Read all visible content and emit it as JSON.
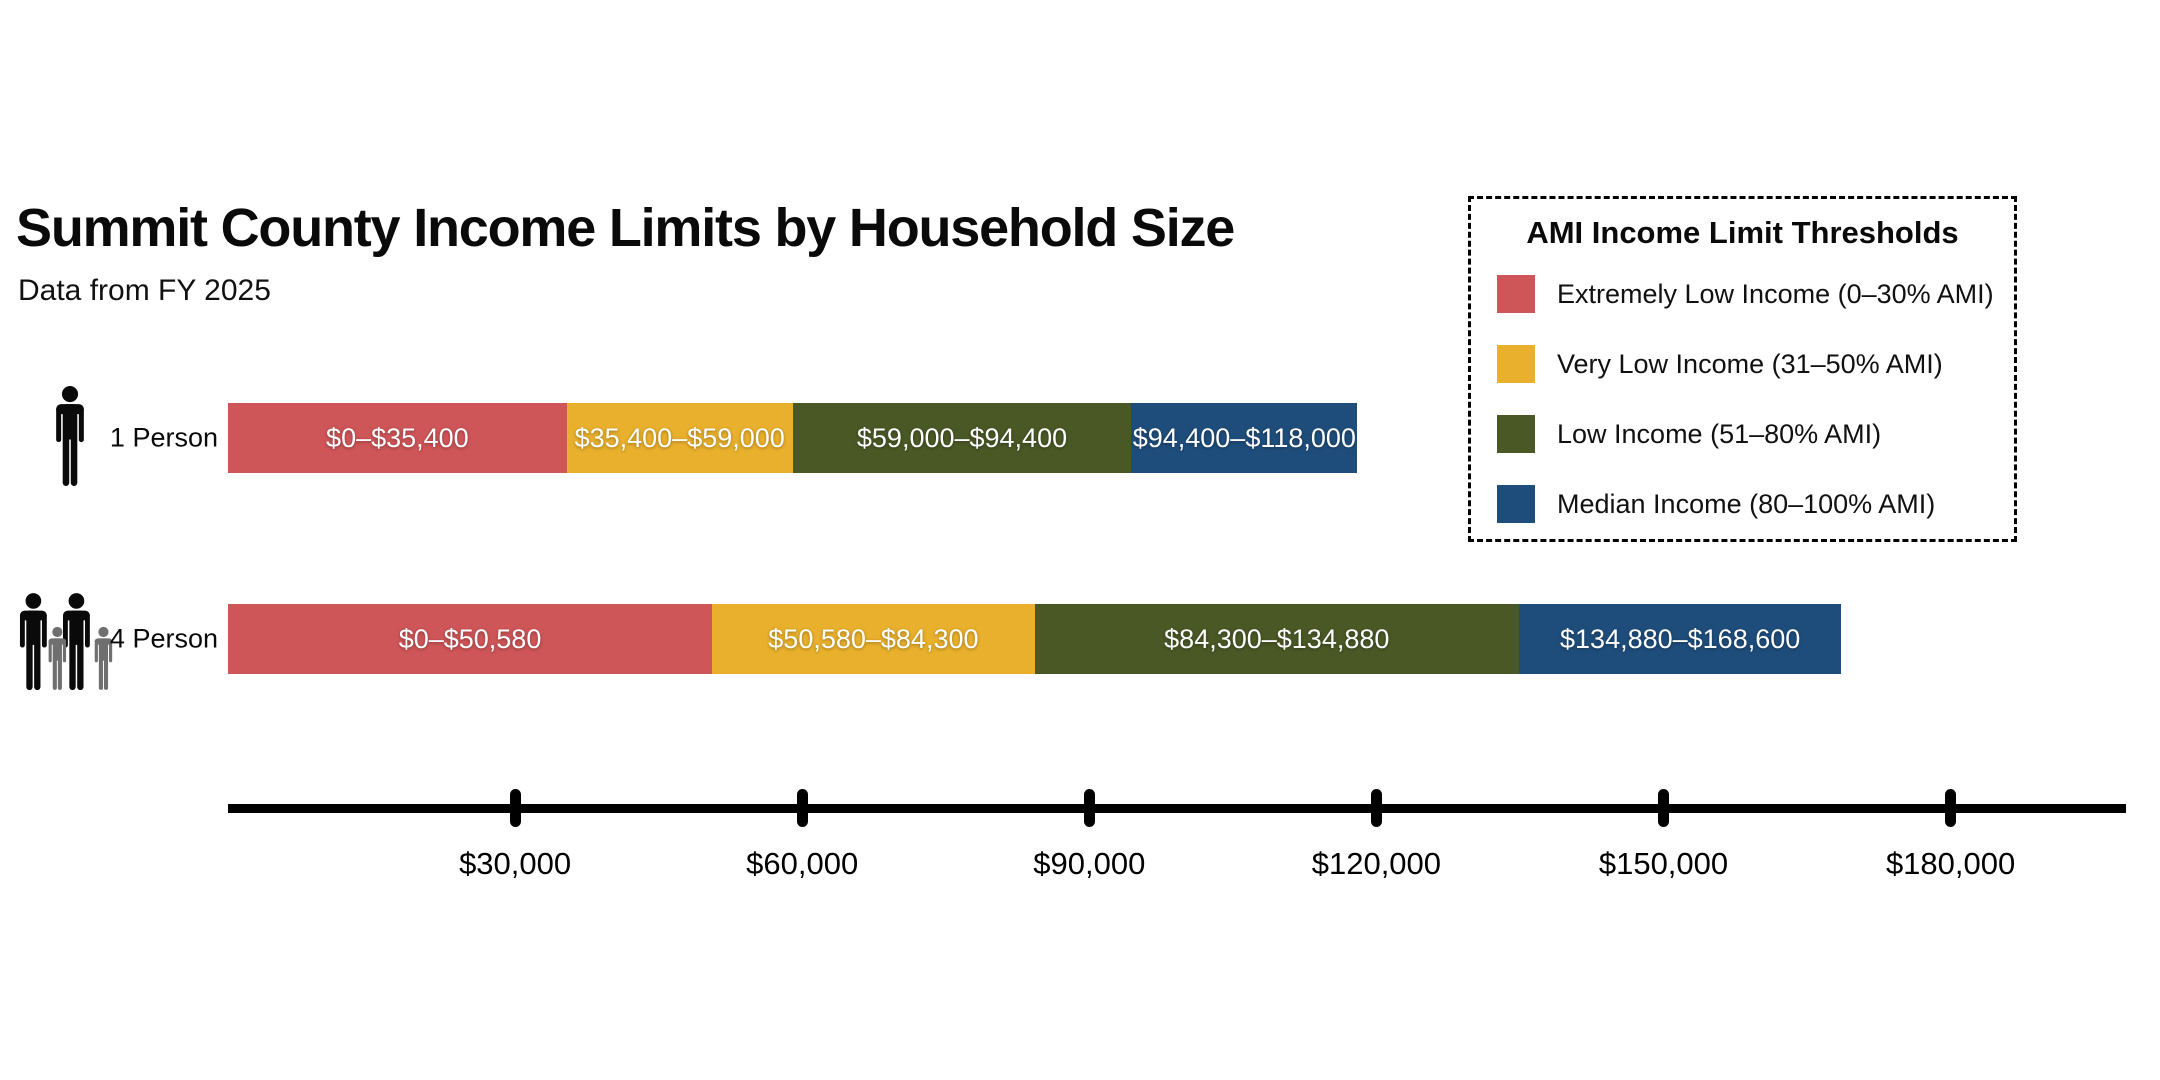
{
  "legend": {
    "title": "AMI Income Limit Thresholds",
    "position": "top-right",
    "border_style": "dashed"
  },
  "icons": {
    "row_icons": [
      "single-person-icon",
      "four-person-family-icon"
    ],
    "adult_color": "#0a0a0a",
    "child_color": "#6f6f6f"
  },
  "chart_data": {
    "type": "bar",
    "subtype": "horizontal-stacked-range",
    "title": "Summit County Income Limits by Household Size",
    "subtitle": "Data from FY 2025",
    "unit": "USD",
    "categories": [
      "1 Person",
      "4 Person"
    ],
    "series": [
      {
        "name": "Extremely Low Income (0–30% AMI)",
        "color": "#CE5558",
        "ranges": [
          [
            0,
            35400
          ],
          [
            0,
            50580
          ]
        ],
        "range_labels": [
          "$0–$35,400",
          "$0–$50,580"
        ]
      },
      {
        "name": "Very Low Income (31–50% AMI)",
        "color": "#E8B02C",
        "ranges": [
          [
            35400,
            59000
          ],
          [
            50580,
            84300
          ]
        ],
        "range_labels": [
          "$35,400–$59,000",
          "$50,580–$84,300"
        ]
      },
      {
        "name": "Low Income (51–80% AMI)",
        "color": "#4A5826",
        "ranges": [
          [
            59000,
            94400
          ],
          [
            84300,
            134880
          ]
        ],
        "range_labels": [
          "$59,000–$94,400",
          "$84,300–$134,880"
        ]
      },
      {
        "name": "Median Income (80–100% AMI)",
        "color": "#1F4D7B",
        "ranges": [
          [
            94400,
            118000
          ],
          [
            134880,
            168600
          ]
        ],
        "range_labels": [
          "$94,400–$118,000",
          "$134,880–$168,600"
        ]
      }
    ],
    "x_axis": {
      "range": [
        0,
        198000
      ],
      "ticks": [
        {
          "value": 30000,
          "label": "$30,000"
        },
        {
          "value": 60000,
          "label": "$60,000"
        },
        {
          "value": 90000,
          "label": "$90,000"
        },
        {
          "value": 120000,
          "label": "$120,000"
        },
        {
          "value": 150000,
          "label": "$150,000"
        },
        {
          "value": 180000,
          "label": "$180,000"
        }
      ]
    },
    "grid": false,
    "legend_position": "top-right"
  }
}
